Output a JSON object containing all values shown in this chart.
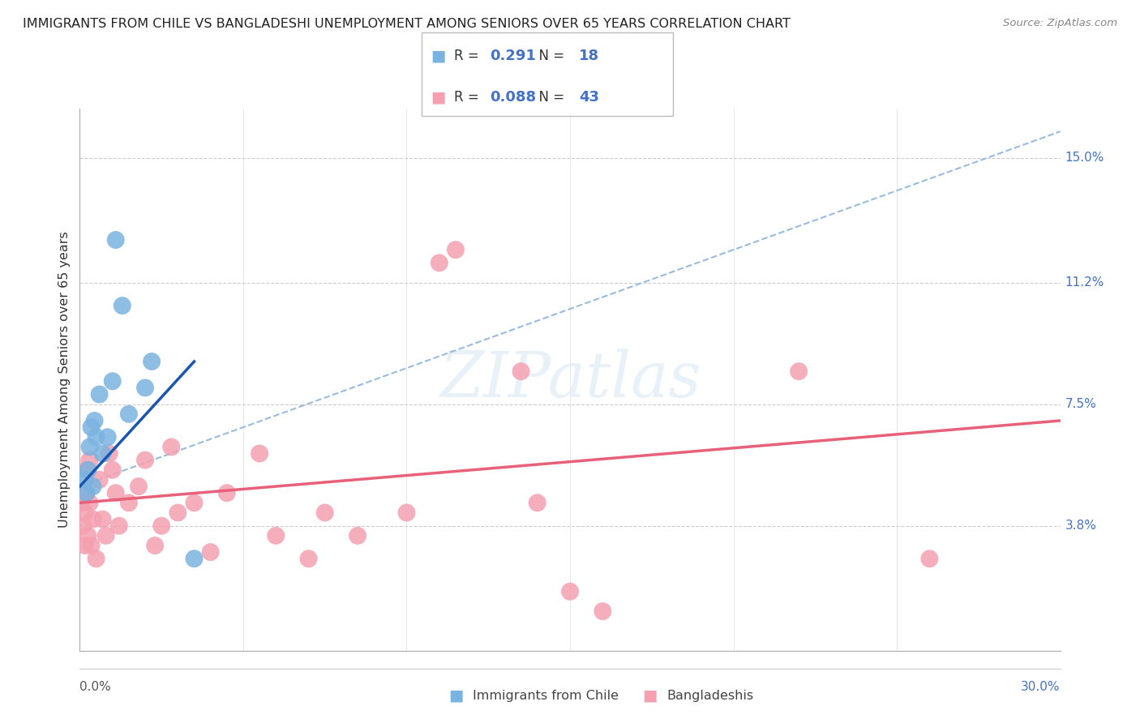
{
  "title": "IMMIGRANTS FROM CHILE VS BANGLADESHI UNEMPLOYMENT AMONG SENIORS OVER 65 YEARS CORRELATION CHART",
  "source": "Source: ZipAtlas.com",
  "ylabel": "Unemployment Among Seniors over 65 years",
  "xmin": 0.0,
  "xmax": 30.0,
  "ymin": 0.0,
  "ymax": 16.5,
  "yticks": [
    3.8,
    7.5,
    11.2,
    15.0
  ],
  "ytick_labels": [
    "3.8%",
    "7.5%",
    "11.2%",
    "15.0%"
  ],
  "grid_color": "#cccccc",
  "R_blue": "0.291",
  "N_blue": "18",
  "R_pink": "0.088",
  "N_pink": "43",
  "blue_color": "#7ab3e0",
  "pink_color": "#f4a0b0",
  "blue_line_color": "#1a56b0",
  "pink_line_color": "#e8607a",
  "dashed_color": "#99bbdd",
  "bottom_legend_blue": "Immigrants from Chile",
  "bottom_legend_pink": "Bangladeshis",
  "blue_x": [
    0.15,
    0.2,
    0.25,
    0.3,
    0.35,
    0.4,
    0.45,
    0.5,
    0.6,
    0.7,
    0.85,
    1.0,
    1.1,
    1.3,
    1.5,
    2.0,
    2.2,
    3.5
  ],
  "blue_y": [
    5.2,
    4.8,
    5.5,
    6.2,
    6.8,
    5.0,
    7.0,
    6.5,
    7.8,
    6.0,
    6.5,
    8.2,
    12.5,
    10.5,
    7.2,
    8.0,
    8.8,
    2.8
  ],
  "pink_x": [
    0.05,
    0.1,
    0.15,
    0.15,
    0.2,
    0.2,
    0.25,
    0.3,
    0.3,
    0.35,
    0.4,
    0.5,
    0.6,
    0.7,
    0.8,
    0.9,
    1.0,
    1.1,
    1.2,
    1.5,
    1.8,
    2.0,
    2.3,
    2.5,
    2.8,
    3.0,
    3.5,
    4.0,
    4.5,
    5.5,
    6.0,
    7.0,
    7.5,
    8.5,
    10.0,
    11.0,
    11.5,
    13.5,
    14.0,
    15.0,
    16.0,
    22.0,
    26.0
  ],
  "pink_y": [
    4.5,
    3.8,
    4.2,
    3.2,
    4.8,
    5.5,
    3.5,
    5.8,
    4.5,
    3.2,
    4.0,
    2.8,
    5.2,
    4.0,
    3.5,
    6.0,
    5.5,
    4.8,
    3.8,
    4.5,
    5.0,
    5.8,
    3.2,
    3.8,
    6.2,
    4.2,
    4.5,
    3.0,
    4.8,
    6.0,
    3.5,
    2.8,
    4.2,
    3.5,
    4.2,
    11.8,
    12.2,
    8.5,
    4.5,
    1.8,
    1.2,
    8.5,
    2.8
  ],
  "blue_line_x0": 0.0,
  "blue_line_y0": 5.0,
  "blue_line_x1": 3.5,
  "blue_line_y1": 8.8,
  "dashed_line_x0": 0.0,
  "dashed_line_y0": 5.0,
  "dashed_line_x1": 30.0,
  "dashed_line_y1": 15.8,
  "pink_line_x0": 0.0,
  "pink_line_y0": 4.5,
  "pink_line_x1": 30.0,
  "pink_line_y1": 7.0
}
